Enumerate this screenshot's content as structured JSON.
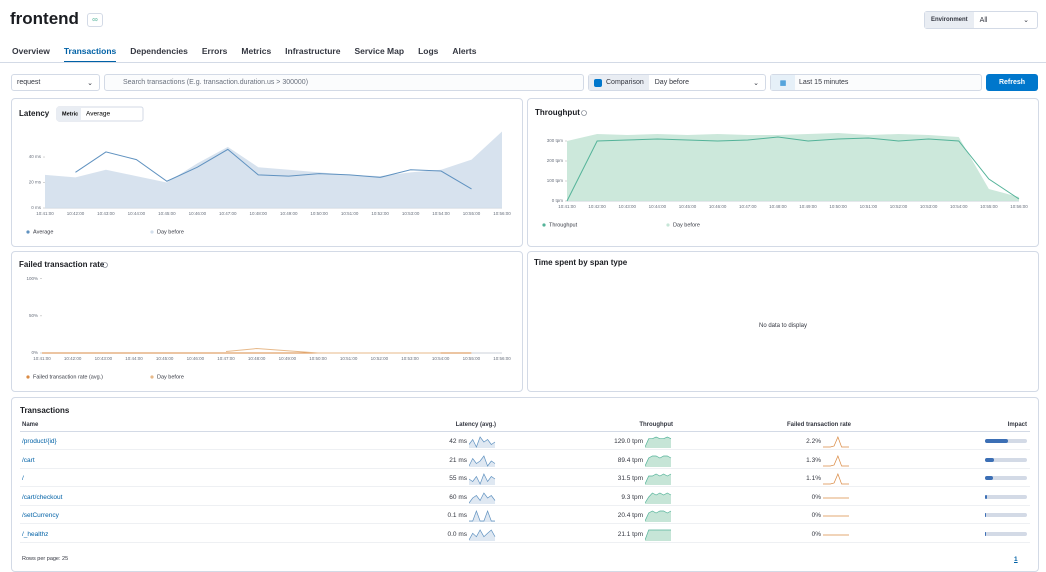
{
  "header": {
    "title": "frontend",
    "environment_label": "Environment",
    "environment_value": "All"
  },
  "tabs": {
    "items": [
      "Overview",
      "Transactions",
      "Dependencies",
      "Errors",
      "Metrics",
      "Infrastructure",
      "Service Map",
      "Logs",
      "Alerts"
    ],
    "active": 1
  },
  "filters": {
    "type": "request",
    "search_placeholder": "Search transactions (E.g. transaction.duration.us > 300000)",
    "comparison": "Comparison",
    "comparison_value": "Day before",
    "time_range": "Last 15 minutes",
    "refresh": "Refresh"
  },
  "chart_data": [
    {
      "type": "line",
      "title": "Latency",
      "metric_label": "Metric",
      "metric_value": "Average",
      "categories": [
        "10:41:00",
        "10:42:00",
        "10:43:00",
        "10:44:00",
        "10:45:00",
        "10:46:00",
        "10:47:00",
        "10:48:00",
        "10:49:00",
        "10:50:00",
        "10:51:00",
        "10:52:00",
        "10:53:00",
        "10:54:00",
        "10:55:00",
        "10:56:00"
      ],
      "series": [
        {
          "name": "Average",
          "color": "#6092c0",
          "style": "line",
          "values": [
            null,
            28,
            44,
            38,
            21,
            32,
            46,
            26,
            25,
            27,
            26,
            24,
            30,
            29,
            15,
            null
          ]
        },
        {
          "name": "Day before",
          "color": "#d3dfec",
          "style": "area",
          "values": [
            26,
            24,
            30,
            25,
            20,
            35,
            48,
            32,
            30,
            28,
            26,
            25,
            28,
            30,
            38,
            60
          ]
        }
      ],
      "ylim": [
        0,
        62
      ],
      "yticks": [
        {
          "value": 0,
          "label": "0 ms"
        },
        {
          "value": 20,
          "label": "20 ms"
        },
        {
          "value": 40,
          "label": "40 ms"
        }
      ]
    },
    {
      "type": "line",
      "title": "Throughput",
      "categories": [
        "10:41:00",
        "10:42:00",
        "10:43:00",
        "10:44:00",
        "10:45:00",
        "10:46:00",
        "10:47:00",
        "10:48:00",
        "10:49:00",
        "10:50:00",
        "10:51:00",
        "10:52:00",
        "10:53:00",
        "10:54:00",
        "10:55:00",
        "10:56:00"
      ],
      "series": [
        {
          "name": "Throughput",
          "color": "#54b399",
          "style": "line",
          "values": [
            0,
            300,
            305,
            310,
            305,
            300,
            305,
            320,
            300,
            310,
            315,
            300,
            310,
            300,
            110,
            10
          ]
        },
        {
          "name": "Day before",
          "color": "#c6e5d7",
          "style": "area",
          "values": [
            300,
            335,
            330,
            335,
            330,
            335,
            330,
            330,
            335,
            340,
            330,
            335,
            330,
            320,
            60,
            20
          ]
        }
      ],
      "ylim": [
        0,
        380
      ],
      "yticks": [
        {
          "value": 0,
          "label": "0 tpm"
        },
        {
          "value": 100,
          "label": "100 tpm"
        },
        {
          "value": 200,
          "label": "200 tpm"
        },
        {
          "value": 300,
          "label": "300 tpm"
        }
      ]
    },
    {
      "type": "line",
      "title": "Failed transaction rate",
      "categories": [
        "10:41:00",
        "10:42:00",
        "10:43:00",
        "10:44:00",
        "10:45:00",
        "10:46:00",
        "10:47:00",
        "10:48:00",
        "10:49:00",
        "10:50:00",
        "10:51:00",
        "10:52:00",
        "10:53:00",
        "10:54:00",
        "10:55:00",
        "10:56:00"
      ],
      "series": [
        {
          "name": "Failed transaction rate (avg.)",
          "color": "#da8b45",
          "style": "line",
          "values": [
            0,
            0,
            0,
            0,
            0,
            0,
            0,
            0,
            0,
            0,
            0,
            0,
            0,
            0,
            0,
            null
          ]
        },
        {
          "name": "Day before",
          "color": "#e7b98a",
          "style": "line",
          "values": [
            null,
            null,
            null,
            null,
            null,
            null,
            2,
            6,
            3,
            0,
            0,
            0,
            0,
            0,
            null,
            null
          ]
        }
      ],
      "ylim": [
        0,
        105
      ],
      "yticks": [
        {
          "value": 0,
          "label": "0%"
        },
        {
          "value": 50,
          "label": "50%"
        },
        {
          "value": 100,
          "label": "100%"
        }
      ]
    }
  ],
  "span_panel": {
    "title": "Time spent by span type",
    "empty": "No data to display"
  },
  "table": {
    "title": "Transactions",
    "columns": [
      "Name",
      "Latency (avg.)",
      "Throughput",
      "Failed transaction rate",
      "Impact"
    ],
    "rows": [
      {
        "name": "/product/{id}",
        "latency": "42 ms",
        "throughput": "129.0 tpm",
        "failed": "2.2%",
        "impact": 55,
        "latency_spark": [
          4,
          6,
          3,
          7,
          5,
          6,
          4,
          5
        ],
        "throughput_spark": [
          2,
          7,
          7,
          8,
          7,
          7,
          8,
          7
        ],
        "failed_spark": [
          0,
          0,
          0,
          1,
          9,
          0,
          0,
          0
        ]
      },
      {
        "name": "/cart",
        "latency": "21 ms",
        "throughput": "89.4 tpm",
        "failed": "1.3%",
        "impact": 22,
        "latency_spark": [
          3,
          6,
          4,
          5,
          7,
          3,
          5,
          4
        ],
        "throughput_spark": [
          2,
          6,
          7,
          7,
          6,
          7,
          7,
          6
        ],
        "failed_spark": [
          0,
          0,
          0,
          1,
          9,
          0,
          0,
          0
        ]
      },
      {
        "name": "/",
        "latency": "55 ms",
        "throughput": "31.5 tpm",
        "failed": "1.1%",
        "impact": 18,
        "latency_spark": [
          5,
          4,
          6,
          3,
          7,
          4,
          6,
          5
        ],
        "throughput_spark": [
          2,
          6,
          6,
          7,
          6,
          7,
          6,
          7
        ],
        "failed_spark": [
          0,
          0,
          0,
          1,
          9,
          0,
          0,
          0
        ]
      },
      {
        "name": "/cart/checkout",
        "latency": "60 ms",
        "throughput": "9.3 tpm",
        "failed": "0%",
        "impact": 5,
        "latency_spark": [
          3,
          5,
          6,
          4,
          7,
          5,
          6,
          4
        ],
        "throughput_spark": [
          2,
          5,
          7,
          6,
          7,
          6,
          7,
          6
        ],
        "failed_spark": [
          0,
          0,
          0,
          0,
          0,
          0,
          0,
          0
        ]
      },
      {
        "name": "/setCurrency",
        "latency": "0.1 ms",
        "throughput": "20.4 tpm",
        "failed": "0%",
        "impact": 1,
        "latency_spark": [
          5,
          5,
          6,
          5,
          5,
          6,
          5,
          5
        ],
        "throughput_spark": [
          2,
          6,
          7,
          6,
          7,
          7,
          6,
          7
        ],
        "failed_spark": [
          0,
          0,
          0,
          0,
          0,
          0,
          0,
          0
        ]
      },
      {
        "name": "/_healthz",
        "latency": "0.0 ms",
        "throughput": "21.1 tpm",
        "failed": "0%",
        "impact": 0.5,
        "latency_spark": [
          3,
          5,
          4,
          6,
          4,
          5,
          6,
          4
        ],
        "throughput_spark": [
          2,
          7,
          7,
          7,
          7,
          7,
          7,
          7
        ],
        "failed_spark": [
          0,
          0,
          0,
          0,
          0,
          0,
          0,
          0
        ]
      }
    ],
    "rows_per_page": "Rows per page: 25",
    "page": "1"
  }
}
